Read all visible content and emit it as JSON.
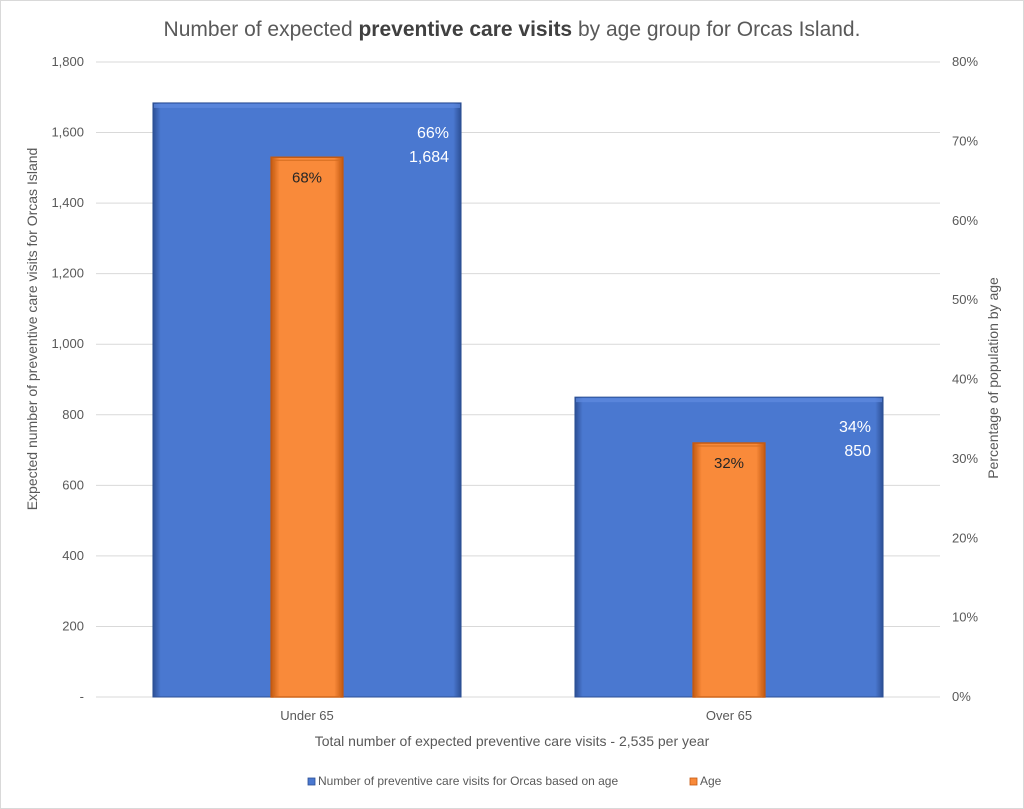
{
  "chart_data": {
    "type": "bar",
    "title_parts": [
      "Number of expected ",
      "preventive care visits",
      " by age group for Orcas Island."
    ],
    "categories": [
      "Under 65",
      "Over 65"
    ],
    "xlabel": "Total number of expected preventive care visits - 2,535 per year",
    "ylabel": "Expected number of preventive care visits for Orcas Island",
    "ylabel_right": "Percentage of population by age",
    "ylim": [
      0,
      1800
    ],
    "ylim_right": [
      0,
      80
    ],
    "y_ticks": [
      "-",
      "200",
      "400",
      "600",
      "800",
      "1,000",
      "1,200",
      "1,400",
      "1,600",
      "1,800"
    ],
    "y_ticks_right": [
      "0%",
      "10%",
      "20%",
      "30%",
      "40%",
      "50%",
      "60%",
      "70%",
      "80%"
    ],
    "grid": true,
    "legend_position": "bottom",
    "series": [
      {
        "name": "Number of preventive care visits for Orcas based on age",
        "axis": "left",
        "color": "#4a78d0",
        "values": [
          1684,
          850
        ],
        "labels": [
          [
            "66%",
            "1,684"
          ],
          [
            "34%",
            "850"
          ]
        ]
      },
      {
        "name": "Age",
        "axis": "right",
        "color": "#f98a3a",
        "values": [
          68,
          32
        ],
        "labels": [
          "68%",
          "32%"
        ]
      }
    ]
  }
}
